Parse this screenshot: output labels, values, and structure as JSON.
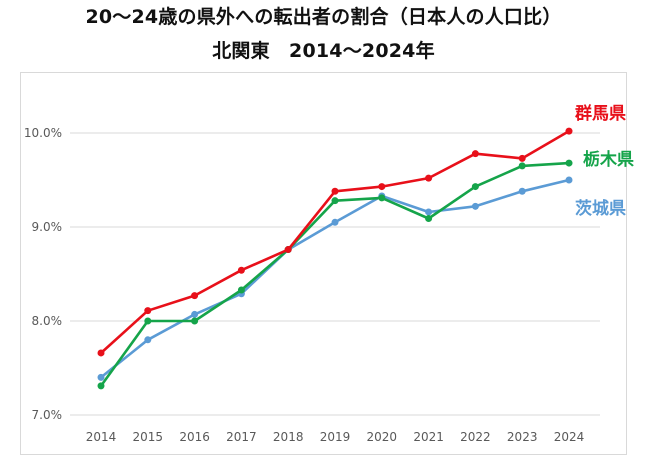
{
  "chart_data": {
    "type": "line",
    "title": "20～24歳の県外への転出者の割合（日本人の人口比）",
    "subtitle": "北関東　2014～2024年",
    "xlabel": "",
    "ylabel": "",
    "x": [
      "2014",
      "2015",
      "2016",
      "2017",
      "2018",
      "2019",
      "2020",
      "2021",
      "2022",
      "2023",
      "2024"
    ],
    "ylim": [
      7.0,
      10.0
    ],
    "yticks": [
      "7.0%",
      "8.0%",
      "9.0%",
      "10.0%"
    ],
    "grid": true,
    "legend": "labels at line ends (right)",
    "series": [
      {
        "name": "群馬県",
        "color": "#e8101a",
        "values": [
          7.66,
          8.11,
          8.27,
          8.54,
          8.76,
          9.38,
          9.43,
          9.52,
          9.78,
          9.73,
          10.02
        ]
      },
      {
        "name": "栃木県",
        "color": "#15a44a",
        "values": [
          7.31,
          8.0,
          8.0,
          8.33,
          8.76,
          9.28,
          9.31,
          9.09,
          9.43,
          9.65,
          9.68
        ]
      },
      {
        "name": "茨城県",
        "color": "#5b9bd5",
        "values": [
          7.4,
          7.8,
          8.07,
          8.29,
          8.76,
          9.05,
          9.33,
          9.16,
          9.22,
          9.38,
          9.5
        ]
      }
    ]
  }
}
